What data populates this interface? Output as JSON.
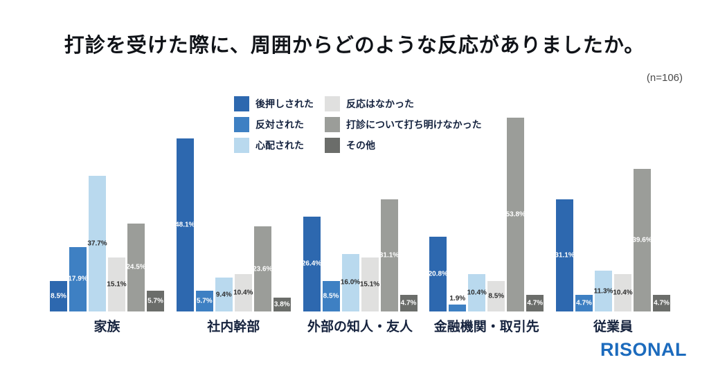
{
  "title": "打診を受けた際に、周囲からどのような反応がありましたか。",
  "sample_size": "(n=106)",
  "brand": "RISONAL",
  "brand_color": "#1c6bbd",
  "chart_data": {
    "type": "bar",
    "title": "打診を受けた際に、周囲からどのような反応がありましたか。",
    "sample_size": 106,
    "categories": [
      "家族",
      "社内幹部",
      "外部の知人・友人",
      "金融機関・取引先",
      "従業員"
    ],
    "series": [
      {
        "name": "後押しされた",
        "color": "#2d68af",
        "label_style": "light",
        "values": [
          8.5,
          48.1,
          26.4,
          20.8,
          31.1
        ],
        "labels": [
          "8.5%",
          "48.1%",
          "26.4%",
          "20.8%",
          "31.1%"
        ]
      },
      {
        "name": "反対された",
        "color": "#3e80c3",
        "label_style": "light",
        "values": [
          17.9,
          5.7,
          8.5,
          1.9,
          4.7
        ],
        "labels": [
          "17.9%",
          "5.7%",
          "8.5%",
          "1.9%",
          "4.7%"
        ]
      },
      {
        "name": "心配された",
        "color": "#b9d9ee",
        "label_style": "dark",
        "values": [
          37.7,
          9.4,
          16.0,
          10.4,
          11.3
        ],
        "labels": [
          "37.7%",
          "9.4%",
          "16.0%",
          "10.4%",
          "11.3%"
        ]
      },
      {
        "name": "反応はなかった",
        "color": "#e0e0df",
        "label_style": "dark",
        "values": [
          15.1,
          10.4,
          15.1,
          8.5,
          10.4
        ],
        "labels": [
          "15.1%",
          "10.4%",
          "15.1%",
          "8.5%",
          "10.4%"
        ]
      },
      {
        "name": "打診について打ち明けなかった",
        "color": "#9b9d99",
        "label_style": "light",
        "values": [
          24.5,
          23.6,
          31.1,
          53.8,
          39.6
        ],
        "labels": [
          "24.5%",
          "23.6%",
          "31.1%",
          "53.8%",
          "39.6%"
        ]
      },
      {
        "name": "その他",
        "color": "#6b6d6a",
        "label_style": "light",
        "values": [
          5.7,
          3.8,
          4.7,
          4.7,
          4.7
        ],
        "labels": [
          "5.7%",
          "3.8%",
          "4.7%",
          "4.7%",
          "4.7%"
        ]
      }
    ],
    "value_suffix": "%",
    "ylim": [
      0,
      54
    ],
    "grid": false,
    "legend_position": "top",
    "xlabel": "",
    "ylabel": ""
  }
}
